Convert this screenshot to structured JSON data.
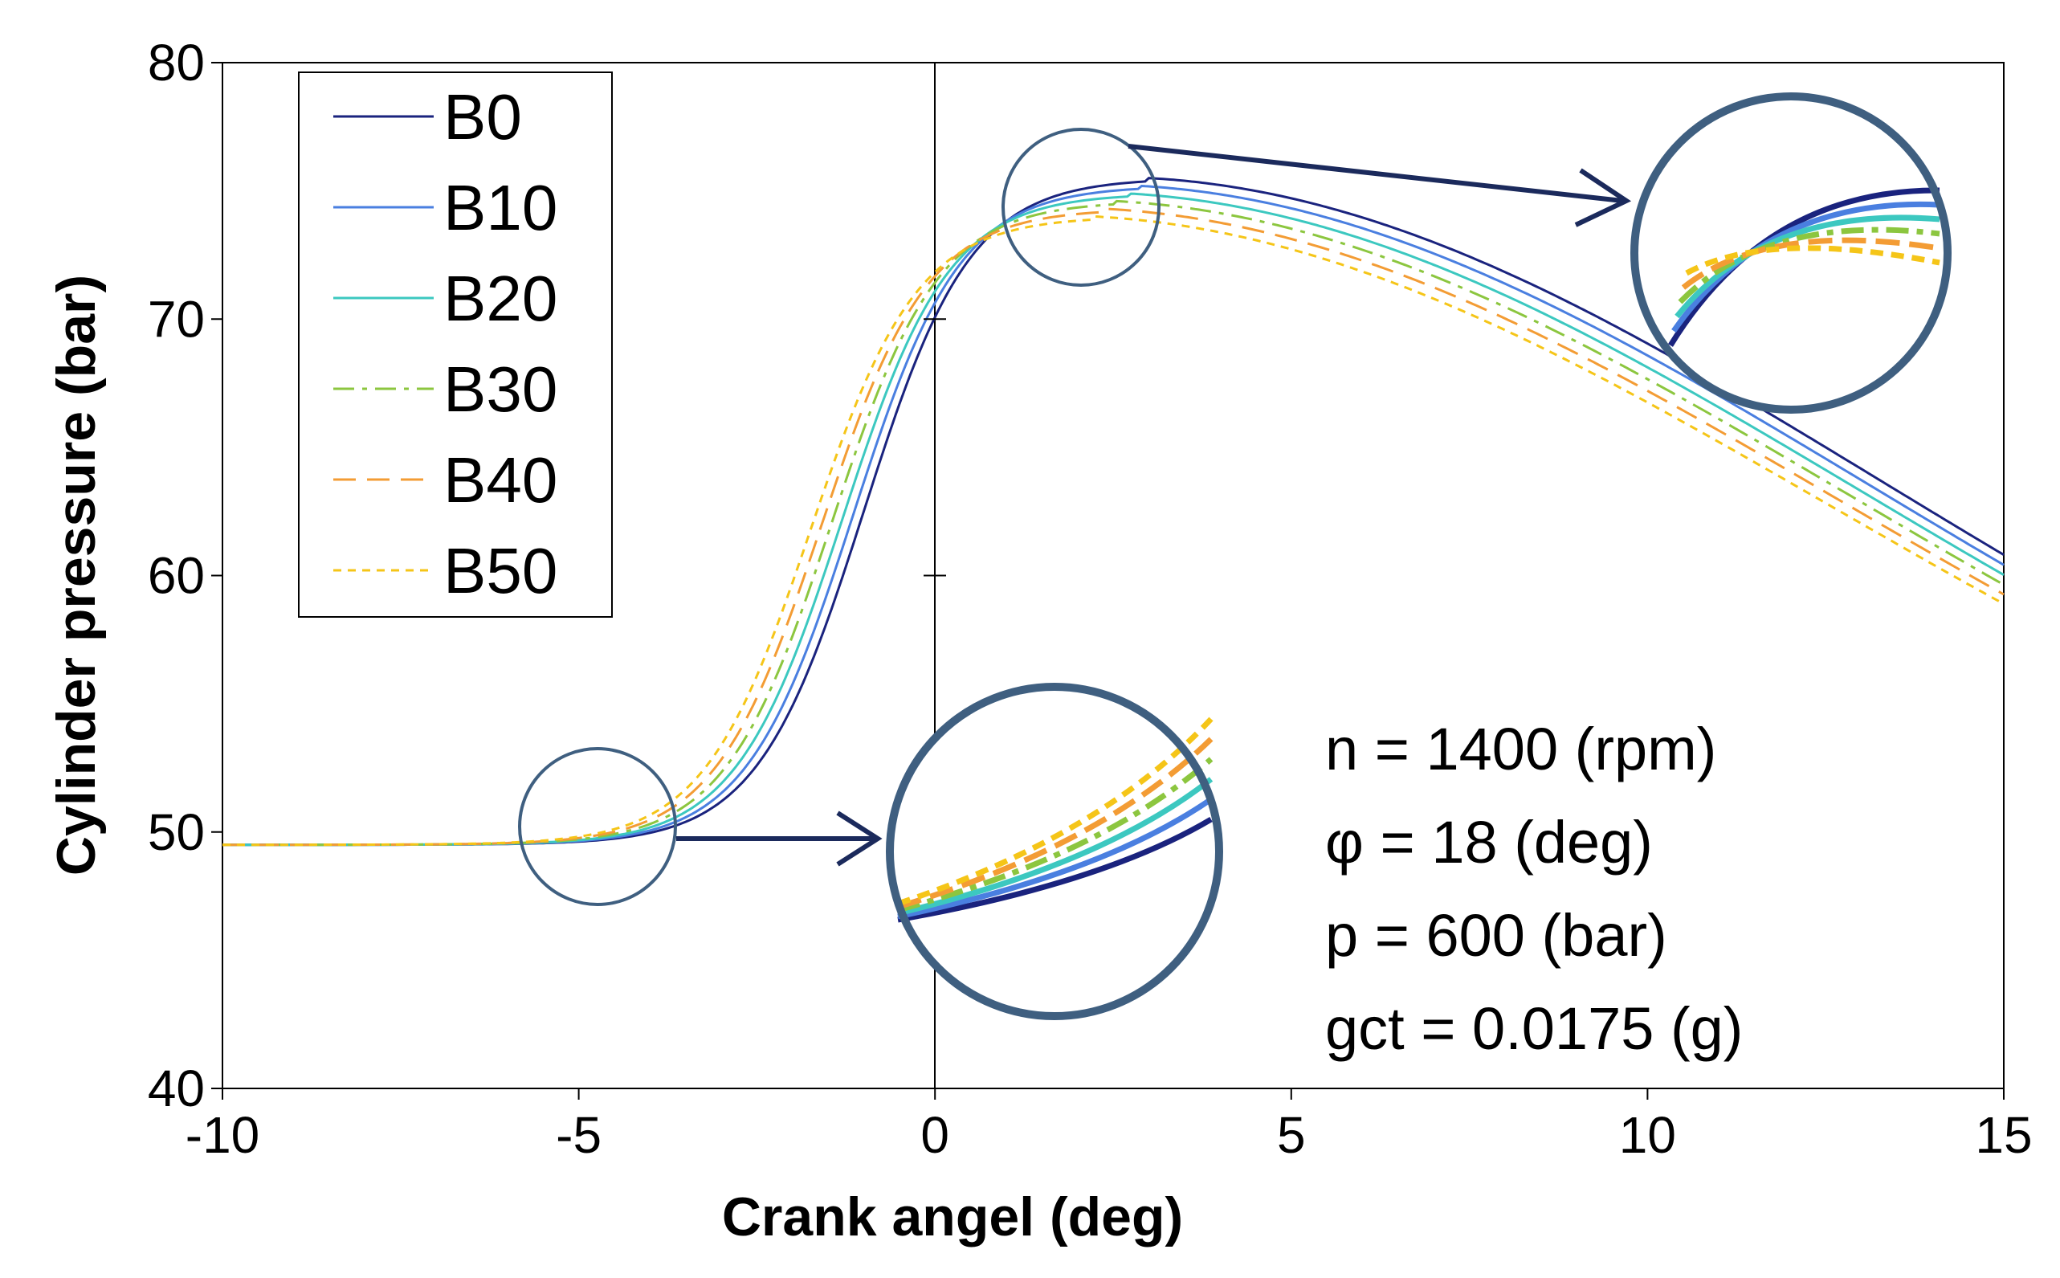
{
  "chart_data": {
    "type": "line",
    "xlabel": "Crank angel (deg)",
    "ylabel": "Cylinder pressure (bar)",
    "xlim": [
      -10,
      15
    ],
    "ylim": [
      40,
      80
    ],
    "x_ticks": [
      -10,
      -5,
      0,
      5,
      10,
      15
    ],
    "y_ticks": [
      40,
      50,
      60,
      70,
      80
    ],
    "x_tick_labels": [
      "-10",
      "-5",
      "0",
      "5",
      "10",
      "15"
    ],
    "y_tick_labels": [
      "40",
      "50",
      "60",
      "70",
      "80"
    ],
    "grid": false,
    "legend_position": "top-left",
    "series": [
      {
        "name": "B0",
        "color": "#1a237e",
        "dash": "solid",
        "shift": 0.0,
        "peak": 75.5
      },
      {
        "name": "B10",
        "color": "#4a7fe0",
        "dash": "solid",
        "shift": -0.15,
        "peak": 75.2
      },
      {
        "name": "B20",
        "color": "#3cc8c0",
        "dash": "solid",
        "shift": -0.3,
        "peak": 74.9
      },
      {
        "name": "B30",
        "color": "#8cc63f",
        "dash": "dashdot",
        "shift": -0.45,
        "peak": 74.6
      },
      {
        "name": "B40",
        "color": "#f39c34",
        "dash": "dashed",
        "shift": -0.6,
        "peak": 74.3
      },
      {
        "name": "B50",
        "color": "#f5c518",
        "dash": "dotted",
        "shift": -0.75,
        "peak": 74.0
      }
    ],
    "annotations": [
      "n = 1400 (rpm)",
      "φ = 18 (deg)",
      "p = 600 (bar)",
      "gct = 0.0175 (g)"
    ]
  },
  "colors": {
    "zoom_circle": "#3f5f80",
    "arrow": "#1b2a5c"
  }
}
